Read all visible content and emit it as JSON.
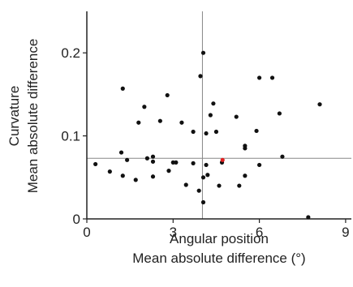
{
  "chart_data": {
    "type": "scatter",
    "xlabel_line1": "Angular position",
    "xlabel_line2": "Mean absolute difference (°)",
    "ylabel_line1": "Curvature",
    "ylabel_line2": "Mean absolute difference",
    "xlim": [
      0,
      9.2
    ],
    "ylim": [
      0,
      0.25
    ],
    "xticks": [
      0,
      3,
      6,
      9
    ],
    "xtick_labels": [
      "0",
      "3",
      "6",
      "9"
    ],
    "yticks": [
      0,
      0.1,
      0.2
    ],
    "ytick_labels": [
      "0",
      "0.1",
      "0.2"
    ],
    "reference_lines": {
      "vertical_x": 4.02,
      "horizontal_y": 0.073
    },
    "colors": {
      "points": "#111111",
      "highlight": "#e02020",
      "axis": "#222222",
      "reference": "#888888"
    },
    "series": [
      {
        "color": "#111111",
        "points": [
          [
            0.3,
            0.066
          ],
          [
            0.8,
            0.057
          ],
          [
            1.2,
            0.08
          ],
          [
            1.25,
            0.157
          ],
          [
            1.25,
            0.052
          ],
          [
            1.4,
            0.071
          ],
          [
            1.7,
            0.047
          ],
          [
            1.8,
            0.116
          ],
          [
            2.0,
            0.135
          ],
          [
            2.1,
            0.073
          ],
          [
            2.3,
            0.075
          ],
          [
            2.3,
            0.069
          ],
          [
            2.3,
            0.051
          ],
          [
            2.55,
            0.118
          ],
          [
            2.8,
            0.149
          ],
          [
            2.85,
            0.058
          ],
          [
            3.0,
            0.068
          ],
          [
            3.1,
            0.068
          ],
          [
            3.3,
            0.116
          ],
          [
            3.45,
            0.041
          ],
          [
            3.7,
            0.105
          ],
          [
            3.7,
            0.067
          ],
          [
            3.9,
            0.034
          ],
          [
            3.95,
            0.172
          ],
          [
            4.05,
            0.2
          ],
          [
            4.05,
            0.05
          ],
          [
            4.05,
            0.02
          ],
          [
            4.15,
            0.103
          ],
          [
            4.15,
            0.065
          ],
          [
            4.2,
            0.053
          ],
          [
            4.3,
            0.125
          ],
          [
            4.4,
            0.139
          ],
          [
            4.5,
            0.105
          ],
          [
            4.6,
            0.04
          ],
          [
            4.7,
            0.068
          ],
          [
            5.2,
            0.123
          ],
          [
            5.3,
            0.04
          ],
          [
            5.5,
            0.088
          ],
          [
            5.5,
            0.085
          ],
          [
            5.5,
            0.052
          ],
          [
            5.9,
            0.106
          ],
          [
            6.0,
            0.17
          ],
          [
            6.0,
            0.065
          ],
          [
            6.45,
            0.17
          ],
          [
            6.7,
            0.127
          ],
          [
            6.8,
            0.075
          ],
          [
            7.7,
            0.002
          ],
          [
            8.1,
            0.138
          ]
        ]
      },
      {
        "color": "#e02020",
        "points": [
          [
            4.72,
            0.071
          ]
        ]
      }
    ]
  }
}
